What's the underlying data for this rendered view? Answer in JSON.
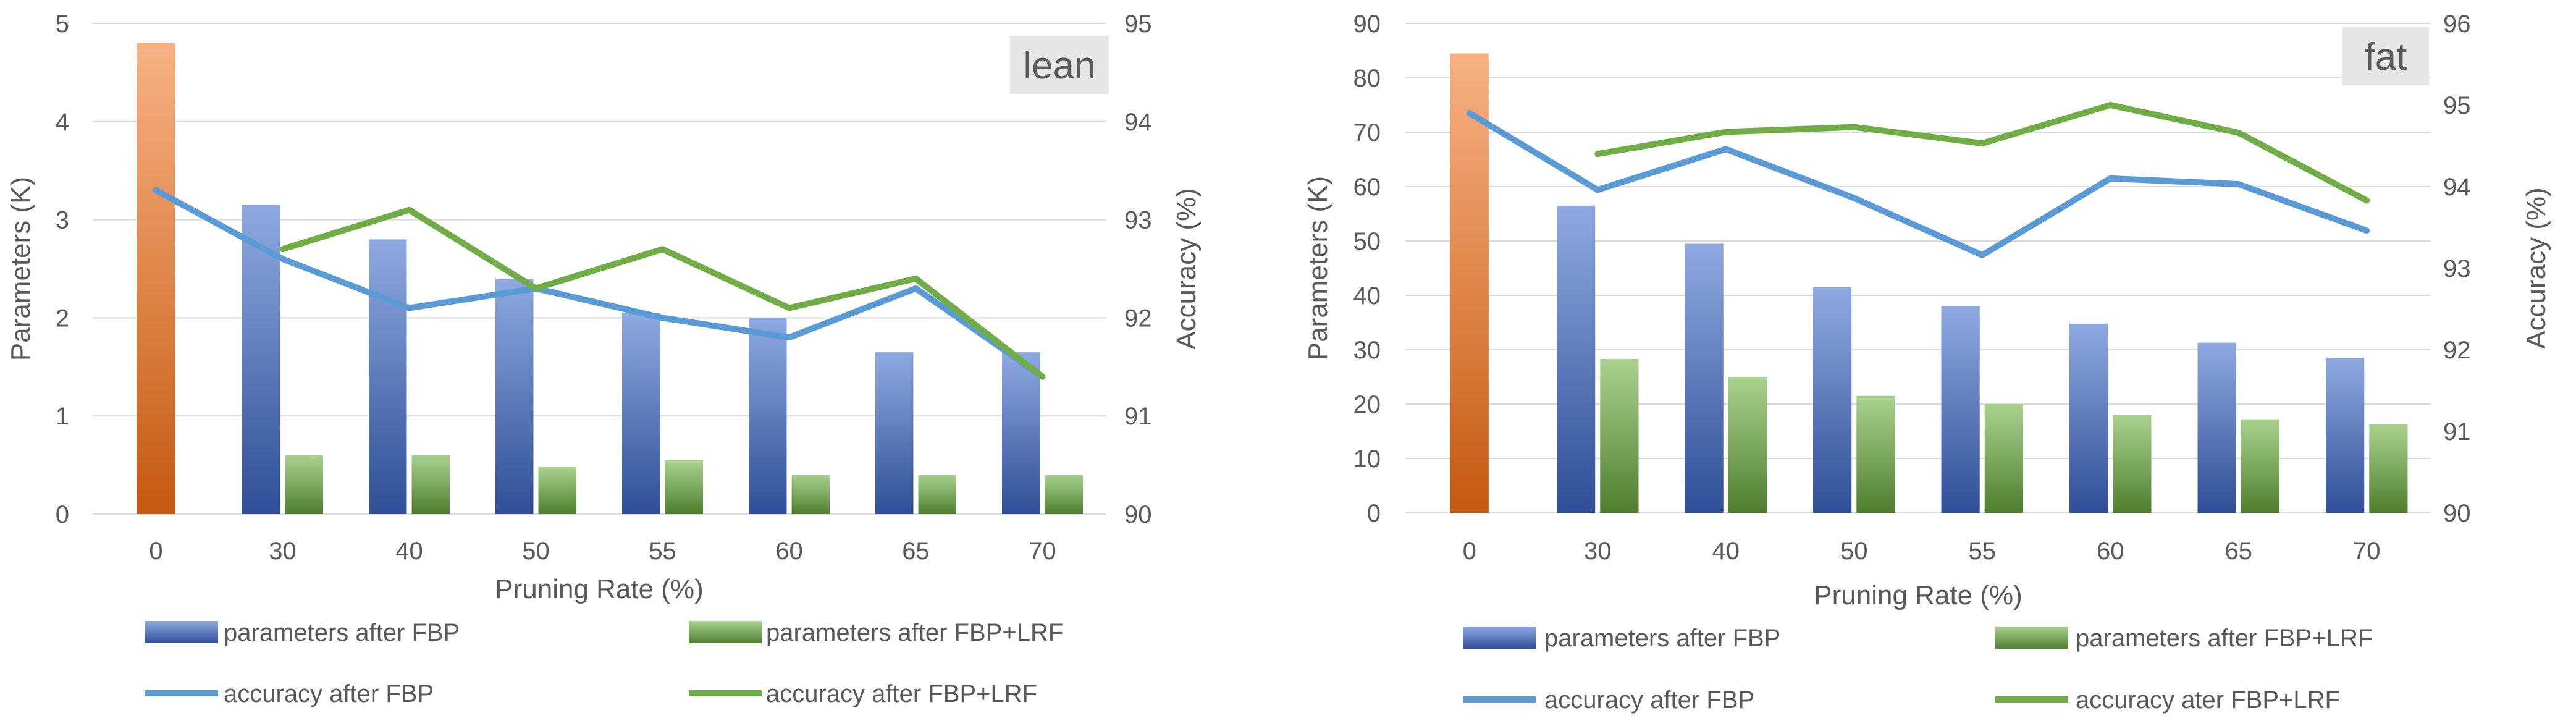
{
  "chart_data": [
    {
      "type": "bar",
      "title": "lean",
      "xlabel": "Pruning Rate (%)",
      "ylabel": "Parameters (K)",
      "y2label": "Accuracy (%)",
      "categories": [
        "0",
        "30",
        "40",
        "50",
        "55",
        "60",
        "65",
        "70"
      ],
      "ylim": [
        0,
        5
      ],
      "yticks": [
        "0",
        "1",
        "2",
        "3",
        "4",
        "5"
      ],
      "y2lim": [
        90,
        95
      ],
      "y2ticks": [
        "90",
        "91",
        "92",
        "93",
        "94",
        "95"
      ],
      "original_params": 4.8,
      "series": [
        {
          "name": "parameters after FBP",
          "kind": "bar",
          "values": [
            null,
            3.15,
            2.8,
            2.4,
            2.05,
            2.0,
            1.65,
            1.65
          ]
        },
        {
          "name": "parameters after FBP+LRF",
          "kind": "bar",
          "values": [
            null,
            0.6,
            0.6,
            0.48,
            0.55,
            0.4,
            0.4,
            0.4
          ]
        },
        {
          "name": "accuracy after FBP",
          "kind": "line",
          "axis": "right",
          "values": [
            93.3,
            92.6,
            92.1,
            92.3,
            92.0,
            91.8,
            92.3,
            91.4
          ]
        },
        {
          "name": "accuracy after FBP+LRF",
          "kind": "line",
          "axis": "right",
          "values": [
            null,
            92.7,
            93.1,
            92.3,
            92.7,
            92.1,
            92.4,
            91.4
          ]
        }
      ]
    },
    {
      "type": "bar",
      "title": "fat",
      "xlabel": "Pruning Rate (%)",
      "ylabel": "Parameters (K)",
      "y2label": "Accuracy (%)",
      "categories": [
        "0",
        "30",
        "40",
        "50",
        "55",
        "60",
        "65",
        "70"
      ],
      "ylim": [
        0,
        90
      ],
      "yticks": [
        "0",
        "10",
        "20",
        "30",
        "40",
        "50",
        "60",
        "70",
        "80",
        "90"
      ],
      "y2lim": [
        90,
        96
      ],
      "y2ticks": [
        "90",
        "91",
        "92",
        "93",
        "94",
        "95",
        "96"
      ],
      "original_params": 84.5,
      "series": [
        {
          "name": "parameters after FBP",
          "kind": "bar",
          "values": [
            null,
            56.5,
            49.5,
            41.5,
            38.0,
            34.8,
            31.3,
            28.5
          ]
        },
        {
          "name": "parameters after FBP+LRF",
          "kind": "bar",
          "values": [
            null,
            28.3,
            25.0,
            21.5,
            20.0,
            18.0,
            17.2,
            16.3
          ]
        },
        {
          "name": "accuracy after FBP",
          "kind": "line",
          "axis": "right",
          "values": [
            94.9,
            93.96,
            94.46,
            93.86,
            93.16,
            94.1,
            94.03,
            93.46
          ]
        },
        {
          "name": "accuracy ater FBP+LRF",
          "kind": "line",
          "axis": "right",
          "values": [
            null,
            94.4,
            94.67,
            94.73,
            94.53,
            95.0,
            94.66,
            93.83
          ]
        }
      ]
    }
  ],
  "colors": {
    "fbp_bar_top": "#8ea9e0",
    "fbp_bar_bottom": "#2f4f98",
    "lrf_bar_top": "#a9d18e",
    "lrf_bar_bottom": "#4f7f2f",
    "orig_bar_top": "#f7b183",
    "orig_bar_bottom": "#c55a11",
    "fbp_line": "#5b9bd5",
    "lrf_line": "#70ad47",
    "grid": "#d9d9d9",
    "text": "#595959",
    "tag_bg": "#e6e6e6"
  }
}
